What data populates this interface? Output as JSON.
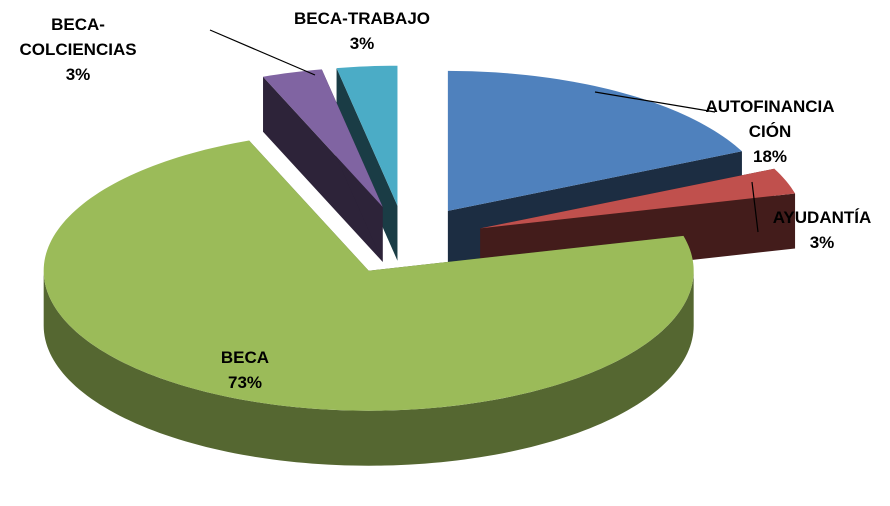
{
  "chart_data": {
    "type": "pie",
    "categories": [
      "AUTOFINANCIACIÓN",
      "AYUDANTÍA",
      "BECA",
      "BECA-COLCIENCIAS",
      "BECA-TRABAJO"
    ],
    "values": [
      18,
      3,
      73,
      3,
      3
    ],
    "value_labels": [
      "18%",
      "3%",
      "73%",
      "3%",
      "3%"
    ],
    "colors": [
      "#4f81bd",
      "#c0504d",
      "#9bbb59",
      "#8064a2",
      "#4bacc6"
    ]
  }
}
